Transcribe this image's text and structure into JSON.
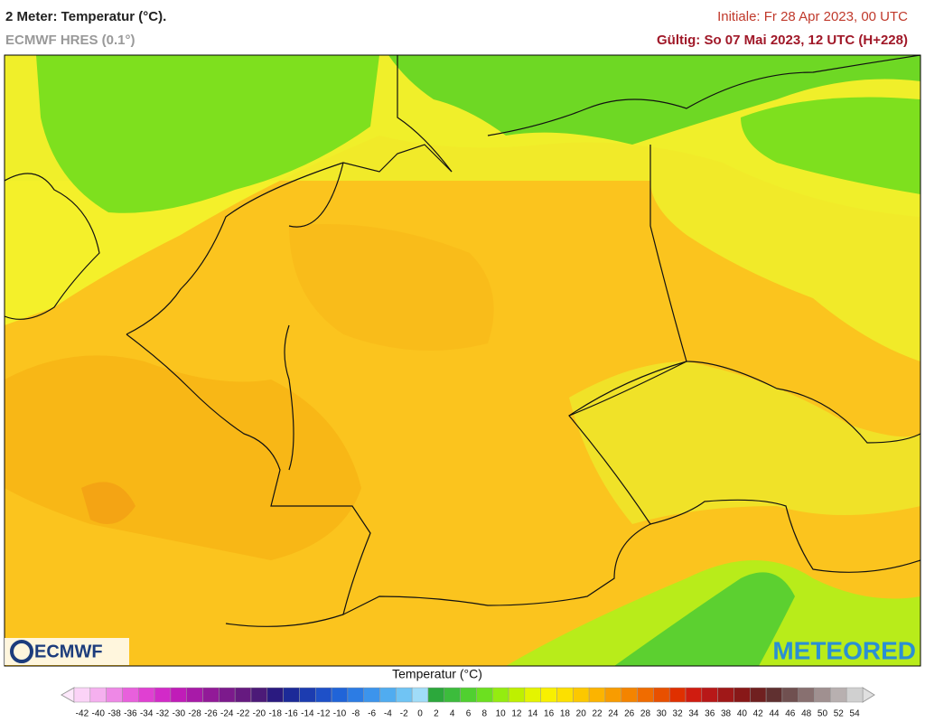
{
  "header": {
    "title": "2 Meter: Temperatur (°C).",
    "model": "ECMWF HRES (0.1°)",
    "init": "Initiale: Fr 28 Apr 2023, 00 UTC",
    "valid": "Gültig: So 07 Mai 2023, 12 UTC (H+228)"
  },
  "logos": {
    "left": "ECMWF",
    "right": "METEORED"
  },
  "legend": {
    "title": "Temperatur (°C)",
    "ticks": [
      -42,
      -40,
      -38,
      -36,
      -34,
      -32,
      -30,
      -28,
      -26,
      -24,
      -22,
      -20,
      -18,
      -16,
      -14,
      -12,
      -10,
      -8,
      -6,
      -4,
      -2,
      0,
      2,
      4,
      6,
      8,
      10,
      12,
      14,
      16,
      18,
      20,
      22,
      24,
      26,
      28,
      30,
      32,
      34,
      36,
      38,
      40,
      42,
      44,
      46,
      48,
      50,
      52,
      54
    ],
    "colors": [
      "#fbd3f7",
      "#f5b0ef",
      "#ee88e6",
      "#e860dc",
      "#e040d2",
      "#d22ac8",
      "#c01cb8",
      "#a81aa8",
      "#921a98",
      "#7c1a8c",
      "#661a80",
      "#4c1a78",
      "#2a1a80",
      "#1c2a98",
      "#1c3cb0",
      "#1e50c8",
      "#2064d8",
      "#2c7ce4",
      "#3c94ec",
      "#50acf0",
      "#70c4f4",
      "#a0dcf8",
      "#2ca83c",
      "#3cbc3c",
      "#50d030",
      "#6ce020",
      "#94ec10",
      "#bef000",
      "#e4f400",
      "#f8f000",
      "#fce000",
      "#fcc800",
      "#fcb400",
      "#f89c00",
      "#f48400",
      "#f06c00",
      "#e85000",
      "#e03000",
      "#d01c10",
      "#b81818",
      "#a01818",
      "#881818",
      "#702020",
      "#603030",
      "#705050",
      "#887070",
      "#a09090",
      "#b8b0b0",
      "#d0d0d0"
    ]
  }
}
